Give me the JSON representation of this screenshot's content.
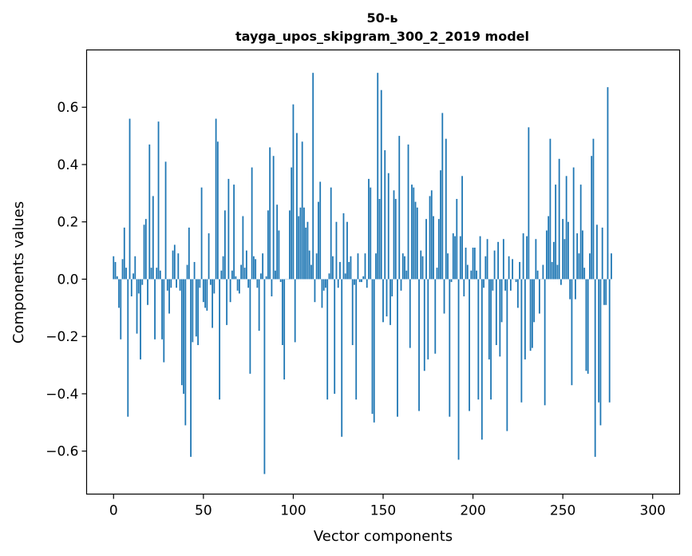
{
  "chart_data": {
    "type": "bar",
    "title_line1": "50-ь",
    "title_line2": "tayga_upos_skipgram_300_2_2019 model",
    "xlabel": "Vector components",
    "ylabel": "Components values",
    "xlim": [
      -15,
      315
    ],
    "ylim": [
      -0.75,
      0.8
    ],
    "xticks": [
      0,
      50,
      100,
      150,
      200,
      250,
      300
    ],
    "yticks": [
      -0.6,
      -0.4,
      -0.2,
      0.0,
      0.2,
      0.4,
      0.6
    ],
    "ytick_labels": [
      "−0.6",
      "−0.4",
      "−0.2",
      "0.0",
      "0.2",
      "0.4",
      "0.6"
    ],
    "bar_color": "#1f77b4",
    "grid": false,
    "values": [
      0.08,
      0.06,
      0.01,
      -0.1,
      -0.21,
      0.07,
      0.18,
      0.04,
      -0.48,
      0.56,
      -0.06,
      0.02,
      0.08,
      -0.19,
      -0.05,
      -0.28,
      -0.02,
      0.19,
      0.21,
      -0.09,
      0.47,
      0.04,
      0.29,
      -0.21,
      0.04,
      0.55,
      0.03,
      -0.21,
      -0.29,
      0.41,
      -0.04,
      -0.12,
      -0.03,
      0.1,
      0.12,
      -0.03,
      0.09,
      -0.04,
      -0.37,
      -0.4,
      -0.51,
      0.05,
      0.18,
      -0.62,
      -0.22,
      0.06,
      -0.2,
      -0.23,
      -0.03,
      0.32,
      -0.08,
      -0.1,
      -0.11,
      0.16,
      -0.02,
      -0.17,
      -0.05,
      0.56,
      0.48,
      -0.42,
      0.03,
      0.08,
      0.24,
      -0.16,
      0.35,
      -0.08,
      0.03,
      0.33,
      0.01,
      -0.04,
      -0.05,
      0.05,
      0.22,
      0.04,
      0.1,
      -0.03,
      -0.33,
      0.39,
      0.08,
      0.07,
      -0.03,
      -0.18,
      0.02,
      0.09,
      -0.68,
      0.01,
      0.24,
      0.46,
      -0.06,
      0.43,
      0.03,
      0.26,
      0.17,
      -0.01,
      -0.23,
      -0.35,
      0.0,
      0.0,
      0.24,
      0.39,
      0.61,
      -0.22,
      0.51,
      0.22,
      0.25,
      0.48,
      0.25,
      0.18,
      0.2,
      0.1,
      0.05,
      0.72,
      -0.08,
      0.09,
      0.27,
      0.34,
      -0.1,
      -0.04,
      -0.03,
      -0.42,
      0.02,
      0.32,
      0.08,
      -0.4,
      0.2,
      -0.03,
      0.06,
      -0.55,
      0.23,
      0.02,
      0.2,
      0.06,
      0.08,
      -0.23,
      -0.02,
      -0.42,
      0.09,
      -0.01,
      -0.01,
      0.01,
      0.09,
      -0.03,
      0.35,
      0.32,
      -0.47,
      -0.5,
      0.09,
      0.72,
      0.28,
      0.66,
      -0.15,
      0.45,
      -0.13,
      0.37,
      -0.16,
      -0.06,
      0.31,
      0.28,
      -0.48,
      0.5,
      -0.04,
      0.09,
      0.08,
      0.03,
      0.47,
      -0.24,
      0.33,
      0.32,
      0.27,
      0.25,
      -0.46,
      0.1,
      0.08,
      -0.32,
      0.21,
      -0.28,
      0.29,
      0.31,
      0.22,
      -0.26,
      0.04,
      0.21,
      0.38,
      0.58,
      -0.12,
      0.49,
      0.09,
      -0.48,
      -0.01,
      0.16,
      0.15,
      0.28,
      -0.63,
      0.15,
      0.36,
      -0.06,
      0.11,
      0.05,
      -0.46,
      0.03,
      0.11,
      0.11,
      0.03,
      -0.42,
      0.15,
      -0.56,
      -0.03,
      0.08,
      0.14,
      -0.28,
      -0.42,
      -0.04,
      0.1,
      -0.23,
      0.13,
      -0.27,
      -0.15,
      0.14,
      -0.04,
      -0.53,
      0.08,
      -0.04,
      0.07,
      0.0,
      -0.01,
      -0.1,
      0.06,
      -0.43,
      0.16,
      -0.28,
      0.15,
      0.53,
      -0.25,
      -0.24,
      -0.15,
      0.14,
      0.03,
      -0.12,
      0.0,
      0.05,
      -0.44,
      0.17,
      0.22,
      0.49,
      0.06,
      0.13,
      0.33,
      0.05,
      0.42,
      -0.02,
      0.21,
      0.14,
      0.36,
      0.2,
      -0.07,
      -0.37,
      0.39,
      -0.07,
      0.16,
      0.09,
      0.33,
      0.17,
      0.04,
      -0.32,
      -0.33,
      0.09,
      0.43,
      0.49,
      -0.62,
      0.19,
      -0.43,
      -0.51,
      0.18,
      -0.09,
      -0.09,
      0.67,
      -0.43,
      0.09
    ]
  }
}
